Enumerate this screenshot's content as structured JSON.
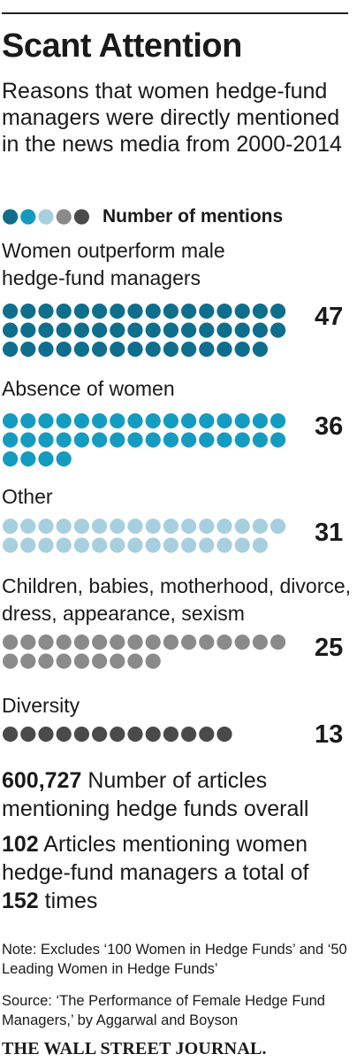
{
  "title": "Scant Attention",
  "subtitle": "Reasons that women hedge-fund managers were directly mentioned in the news media from 2000-2014",
  "legend": {
    "label": "Number of mentions",
    "dot_colors": [
      "#0e6e8c",
      "#149bc0",
      "#a7cfe0",
      "#8a8a8a",
      "#4a4a4a"
    ]
  },
  "chart_data": {
    "type": "bar",
    "title": "Scant Attention",
    "value_label": "Number of mentions",
    "categories": [
      "Women outperform male hedge-fund managers",
      "Absence of women",
      "Other",
      "Children, babies, motherhood, divorce, dress, appearance, sexism",
      "Diversity"
    ],
    "values": [
      47,
      36,
      31,
      25,
      13
    ],
    "colors": [
      "#0e6e8c",
      "#149bc0",
      "#a7cfe0",
      "#8a8a8a",
      "#4a4a4a"
    ],
    "dots_per_row": 16
  },
  "stats": {
    "articles_total_number": "600,727",
    "articles_total_text": " Number of articles mentioning hedge funds overall",
    "women_articles_number": "102",
    "women_articles_text": " Articles mentioning women hedge-fund managers a total of ",
    "women_mentions_number": "152",
    "women_mentions_text": " times"
  },
  "note": "Note: Excludes ‘100 Women in Hedge Funds’ and ‘50 Leading Women in Hedge Funds’",
  "source": "Source: ‘The Performance of Female Hedge Fund Managers,’ by Aggarwal and Boyson",
  "masthead": "THE WALL STREET JOURNAL."
}
